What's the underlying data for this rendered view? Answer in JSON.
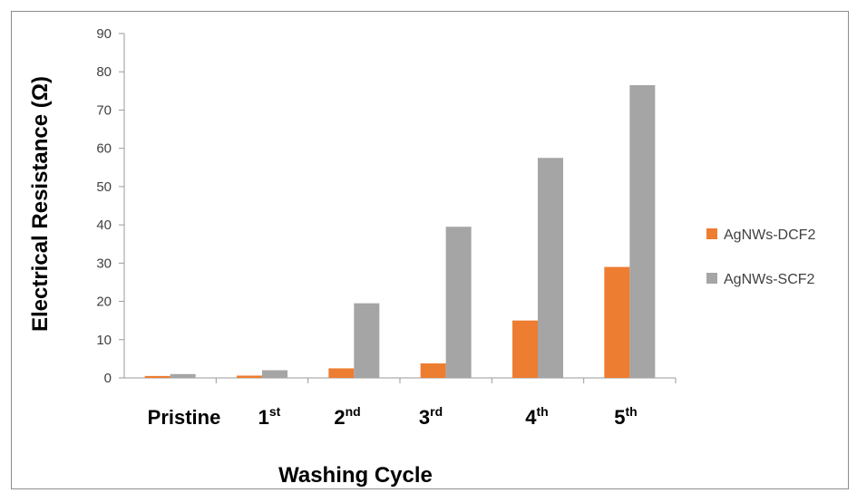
{
  "chart_data": {
    "type": "bar",
    "title": "",
    "xlabel": "Washing Cycle",
    "ylabel": "Electrical Resistance (Ω)",
    "ylim": [
      0,
      90
    ],
    "yticks": [
      0,
      10,
      20,
      30,
      40,
      50,
      60,
      70,
      80,
      90
    ],
    "categories": [
      {
        "base": "Pristine",
        "sup": ""
      },
      {
        "base": "1",
        "sup": "st"
      },
      {
        "base": "2",
        "sup": "nd"
      },
      {
        "base": "3",
        "sup": "rd"
      },
      {
        "base": "4",
        "sup": "th"
      },
      {
        "base": "5",
        "sup": "th"
      }
    ],
    "series": [
      {
        "name": "AgNWs-DCF2",
        "color": "#ED7D31",
        "values": [
          0.5,
          0.6,
          2.5,
          3.8,
          15,
          29
        ]
      },
      {
        "name": "AgNWs-SCF2",
        "color": "#A5A5A5",
        "values": [
          1.0,
          2.0,
          19.5,
          39.5,
          57.5,
          76.5
        ]
      }
    ],
    "legend_position": "right",
    "grid": false
  }
}
